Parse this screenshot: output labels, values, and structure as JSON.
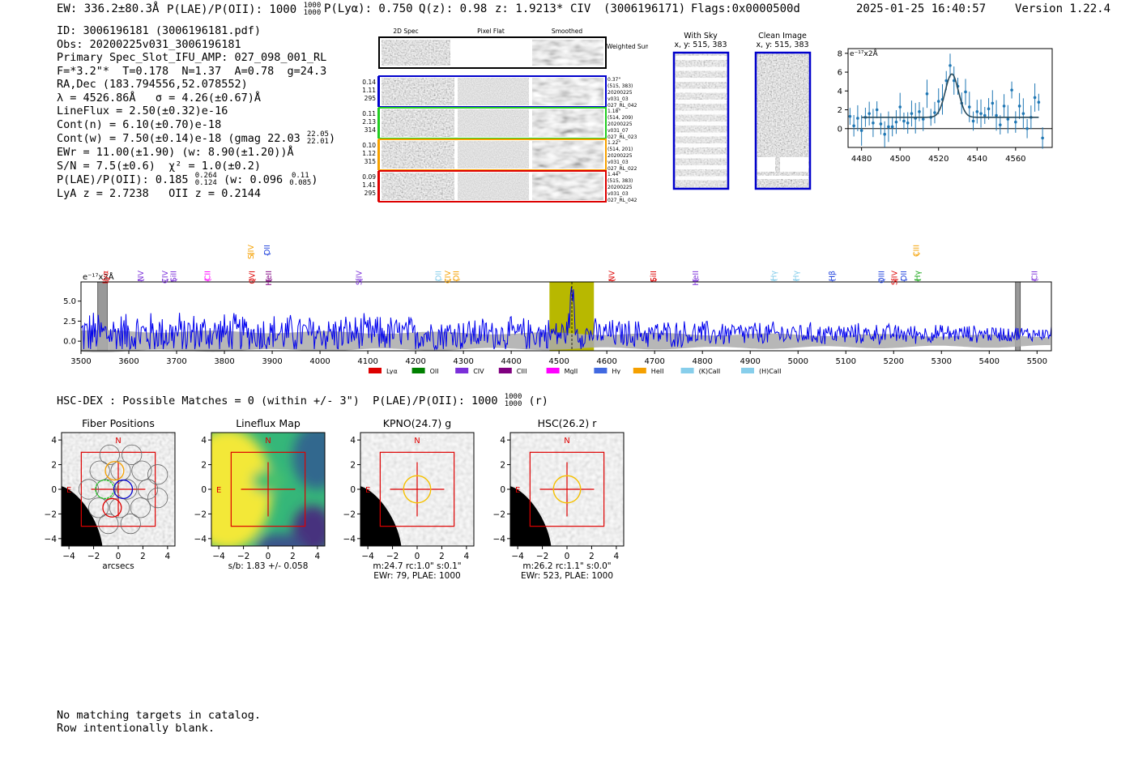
{
  "header": {
    "ew": "EW: 336.2±80.3Å",
    "plae": "P(LAE)/P(OII): 1000",
    "plae_hi": "1000",
    "plae_lo": "1000",
    "plya": "P(Lyα): 0.750",
    "qz": "Q(z): 0.98",
    "z": "z: 1.9213*",
    "line": "CIV",
    "id_paren": "(3006196171)",
    "flags": "Flags:0x0000500d",
    "datetime": "2025-01-25 16:40:57",
    "version": "Version 1.22.4"
  },
  "info": {
    "id": "ID: 3006196181 (3006196181.pdf)",
    "obs": "Obs: 20200225v031_3006196181",
    "primary": "Primary Spec_Slot_IFU_AMP: 027_098_001_RL",
    "fparams": "F=*3.2\"*  T=0.178  N=1.37  A=0.78  g=24.3",
    "radec": "RA,Dec (183.794556,52.078552)",
    "lambda": "λ = 4526.86Å   σ = 4.26(±0.67)Å",
    "lineflux": "LineFlux = 2.50(±0.32)e-16",
    "contn": "Cont(n) = 6.10(±0.70)e-18",
    "contw": "Cont(w) = 7.50(±0.14)e-18 (gmag 22.03",
    "contw_hi": "22.05",
    "contw_lo": "22.01",
    "contw_end": ")",
    "ewr": "EWr = 11.00(±1.90) (w: 8.90(±1.20))Å",
    "sn": "S/N = 7.5(±0.6)  χ² = 1.0(±0.2)",
    "plae": "P(LAE)/P(OII): 0.185",
    "plae_hi": "0.264",
    "plae_lo": "0.124",
    "plae_w": "(w: 0.096",
    "plae_w_hi": "0.11",
    "plae_w_lo": "0.085",
    "plae_end": ")",
    "lya": "LyA z = 2.7238   OII z = 0.2144"
  },
  "cutouts": {
    "headers": [
      "2D Spec",
      "Pixel Flat",
      "Smoothed"
    ],
    "weighted": "Weighted Sum",
    "rows": [
      {
        "vals": [
          "0.14",
          "1.11",
          "295"
        ],
        "meta": [
          "0.37\"",
          "(515, 383)",
          "20200225",
          "v031_03",
          "027_RL_042"
        ],
        "color": "#0000cc"
      },
      {
        "vals": [
          "0.11",
          "2.13",
          "314"
        ],
        "meta": [
          "1.18\"",
          "(514, 209)",
          "20200225",
          "v031_07",
          "027_RL_023"
        ],
        "color": "#22cc22"
      },
      {
        "vals": [
          "0.10",
          "1.12",
          "315"
        ],
        "meta": [
          "1.22\"",
          "(514, 201)",
          "20200225",
          "v031_03",
          "027_RL_022"
        ],
        "color": "#f5a000"
      },
      {
        "vals": [
          "0.09",
          "1.41",
          "295"
        ],
        "meta": [
          "1.44\"",
          "(515, 383)",
          "20200225",
          "v031_03",
          "027_RL_042"
        ],
        "color": "#dd0000"
      }
    ]
  },
  "sky": {
    "with_title": "With Sky",
    "with_coords": "x, y: 515, 383",
    "clean_title": "Clean Image",
    "clean_coords": "x, y: 515, 383"
  },
  "chart_data": [
    {
      "type": "scatter",
      "title": "",
      "ylabel": "e⁻¹⁷x2Å",
      "xlim": [
        4473,
        4579
      ],
      "ylim": [
        -2,
        8.5
      ],
      "xticks": [
        4480,
        4500,
        4520,
        4540,
        4560
      ],
      "yticks": [
        0,
        2,
        4,
        6,
        8
      ],
      "points_x": [
        4474,
        4476,
        4478,
        4480,
        4482,
        4484,
        4486,
        4488,
        4490,
        4492,
        4494,
        4496,
        4498,
        4500,
        4502,
        4504,
        4506,
        4508,
        4510,
        4512,
        4514,
        4516,
        4518,
        4520,
        4522,
        4524,
        4526,
        4528,
        4530,
        4532,
        4534,
        4536,
        4538,
        4540,
        4542,
        4544,
        4546,
        4548,
        4550,
        4552,
        4554,
        4556,
        4558,
        4560,
        4562,
        4564,
        4566,
        4568,
        4570,
        4572,
        4574
      ],
      "points_y": [
        1.3,
        0.3,
        1.1,
        -0.2,
        1.2,
        1.6,
        0.6,
        2.0,
        0.5,
        -0.6,
        0.2,
        0.2,
        0.7,
        2.3,
        0.8,
        0.6,
        1.6,
        1.1,
        1.8,
        1.0,
        3.7,
        1.2,
        1.7,
        2.9,
        3.1,
        5.1,
        6.7,
        5.1,
        4.5,
        2.7,
        3.9,
        2.3,
        0.8,
        1.8,
        1.6,
        1.4,
        2.1,
        2.7,
        1.4,
        0.4,
        2.4,
        1.0,
        4.1,
        0.7,
        2.4,
        1.6,
        0.0,
        1.2,
        3.3,
        2.8,
        -1.0
      ],
      "fit": {
        "baseline": 1.2,
        "peak": 5.8,
        "center": 4526.9,
        "sigma": 3.4
      }
    },
    {
      "type": "line",
      "ylabel": "e⁻¹⁷x2Å",
      "xlim": [
        3500,
        5530
      ],
      "ylim": [
        -1.2,
        7.4
      ],
      "xticks": [
        3500,
        3600,
        3700,
        3800,
        3900,
        4000,
        4100,
        4200,
        4300,
        4400,
        4500,
        4600,
        4700,
        4800,
        4900,
        5000,
        5100,
        5200,
        5300,
        5400,
        5500
      ],
      "yticks": [
        0.0,
        2.5,
        5.0
      ],
      "ytick_labels": [
        "0.0",
        "2.5",
        "5.0"
      ],
      "highlight_range": [
        4480,
        4573
      ],
      "line_center": 4526.9,
      "masked_ranges": [
        [
          3535,
          3555
        ],
        [
          5455,
          5465
        ]
      ],
      "lines": [
        {
          "name": "Lyα",
          "x": 3552,
          "color": "#dd0000"
        },
        {
          "name": "NV",
          "x": 3625,
          "color": "#7b2fd9"
        },
        {
          "name": "CIV",
          "x": 3676,
          "color": "#7b2fd9"
        },
        {
          "name": "SiII",
          "x": 3694,
          "color": "#7b2fd9"
        },
        {
          "name": "CII",
          "x": 3765,
          "color": "#ff00ff"
        },
        {
          "name": "SiIV",
          "x": 3856,
          "color": "#f5a000",
          "upper": true
        },
        {
          "name": "OVI",
          "x": 3858,
          "color": "#dd0000"
        },
        {
          "name": "OII",
          "x": 3890,
          "color": "#2244dd",
          "upper": true
        },
        {
          "name": "HeII",
          "x": 3893,
          "color": "#800080"
        },
        {
          "name": "SiIV",
          "x": 4082,
          "color": "#7b2fd9"
        },
        {
          "name": "OII",
          "x": 4248,
          "color": "#87ceeb"
        },
        {
          "name": "CIV",
          "x": 4268,
          "color": "#f5a000"
        },
        {
          "name": "OII",
          "x": 4285,
          "color": "#f5a000"
        },
        {
          "name": "NV",
          "x": 4611,
          "color": "#dd0000"
        },
        {
          "name": "SiII",
          "x": 4698,
          "color": "#dd0000"
        },
        {
          "name": "HeII",
          "x": 4786,
          "color": "#7b2fd9"
        },
        {
          "name": "Hγ",
          "x": 4950,
          "color": "#87ceeb"
        },
        {
          "name": "Hγ",
          "x": 4996,
          "color": "#87ceeb"
        },
        {
          "name": "Hβ",
          "x": 5072,
          "color": "#2244dd"
        },
        {
          "name": "OIII",
          "x": 5175,
          "color": "#2244dd"
        },
        {
          "name": "SiIV",
          "x": 5202,
          "color": "#dd0000"
        },
        {
          "name": "OII",
          "x": 5222,
          "color": "#2244dd"
        },
        {
          "name": "Hγ",
          "x": 5250,
          "color": "#22aa22"
        },
        {
          "name": "CIII",
          "x": 5248,
          "color": "#f5a000",
          "upper": true
        },
        {
          "name": "CII",
          "x": 5495,
          "color": "#7b2fd9"
        }
      ],
      "legend": [
        {
          "name": "Lyα",
          "color": "#dd0000"
        },
        {
          "name": "OII",
          "color": "#008000"
        },
        {
          "name": "CIV",
          "color": "#7b2fd9"
        },
        {
          "name": "CIII",
          "color": "#800080"
        },
        {
          "name": "MgII",
          "color": "#ff00ff"
        },
        {
          "name": "Hγ",
          "color": "#4169e1"
        },
        {
          "name": "HeII",
          "color": "#f5a000"
        },
        {
          "name": "(K)CaII",
          "color": "#87ceeb"
        },
        {
          "name": "(H)CaII",
          "color": "#87ceeb"
        }
      ]
    }
  ],
  "hsc_line": {
    "text": "HSC-DEX : Possible Matches = 0 (within +/- 3\")  P(LAE)/P(OII): 1000",
    "hi": "1000",
    "lo": "1000",
    "end": "(r)"
  },
  "stamps": [
    {
      "title": "Fiber Positions",
      "caption": [
        "arcsecs"
      ]
    },
    {
      "title": "Lineflux Map",
      "caption": [
        "s/b: 1.83 +/- 0.058"
      ]
    },
    {
      "title": "KPNO(24.7) g",
      "caption": [
        "m:24.7 rc:1.0\"  s:0.1\"",
        "EWr: 79, PLAE: 1000"
      ]
    },
    {
      "title": "HSC(26.2) r",
      "caption": [
        "m:26.2 rc:1.1\"  s:0.0\"",
        "EWr: 523, PLAE: 1000"
      ]
    }
  ],
  "stamp_axis": {
    "ticks": [
      "−4",
      "−2",
      "0",
      "2",
      "4"
    ],
    "yticks": [
      "4",
      "2",
      "0",
      "−2",
      "−4"
    ],
    "north": "N",
    "east": "E"
  },
  "footer": {
    "line1": "No matching targets in catalog.",
    "line2": "Row intentionally blank."
  }
}
